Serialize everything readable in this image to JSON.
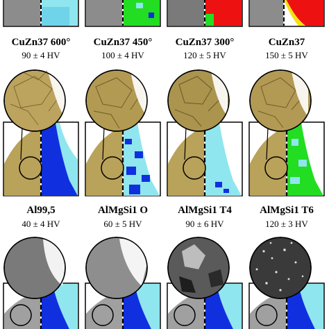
{
  "row1": {
    "materials": [
      {
        "name": "CuZn37 600°",
        "hardness": "90 ± 4 HV"
      },
      {
        "name": "CuZn37 450°",
        "hardness": "100 ± 4 HV"
      },
      {
        "name": "CuZn37 300°",
        "hardness": "120 ± 5 HV"
      },
      {
        "name": "CuZn37",
        "hardness": "150 ± 5 HV"
      }
    ]
  },
  "row2": {
    "materials": [
      {
        "name": "Al99,5",
        "hardness": "40 ± 4 HV"
      },
      {
        "name": "AlMgSi1 O",
        "hardness": "60 ± 5 HV"
      },
      {
        "name": "AlMgSi1 T4",
        "hardness": "90 ± 6 HV"
      },
      {
        "name": "AlMgSi1 T6",
        "hardness": "120 ± 3 HV"
      }
    ]
  },
  "colors": {
    "brass": "#b9a25a",
    "brass_dark": "#8a7434",
    "aluminium": "#9a9a9a",
    "cyan": "#8fe6ee",
    "blue": "#1030e0",
    "green": "#22dd22",
    "red": "#ee1111",
    "yellow": "#f5e010"
  }
}
